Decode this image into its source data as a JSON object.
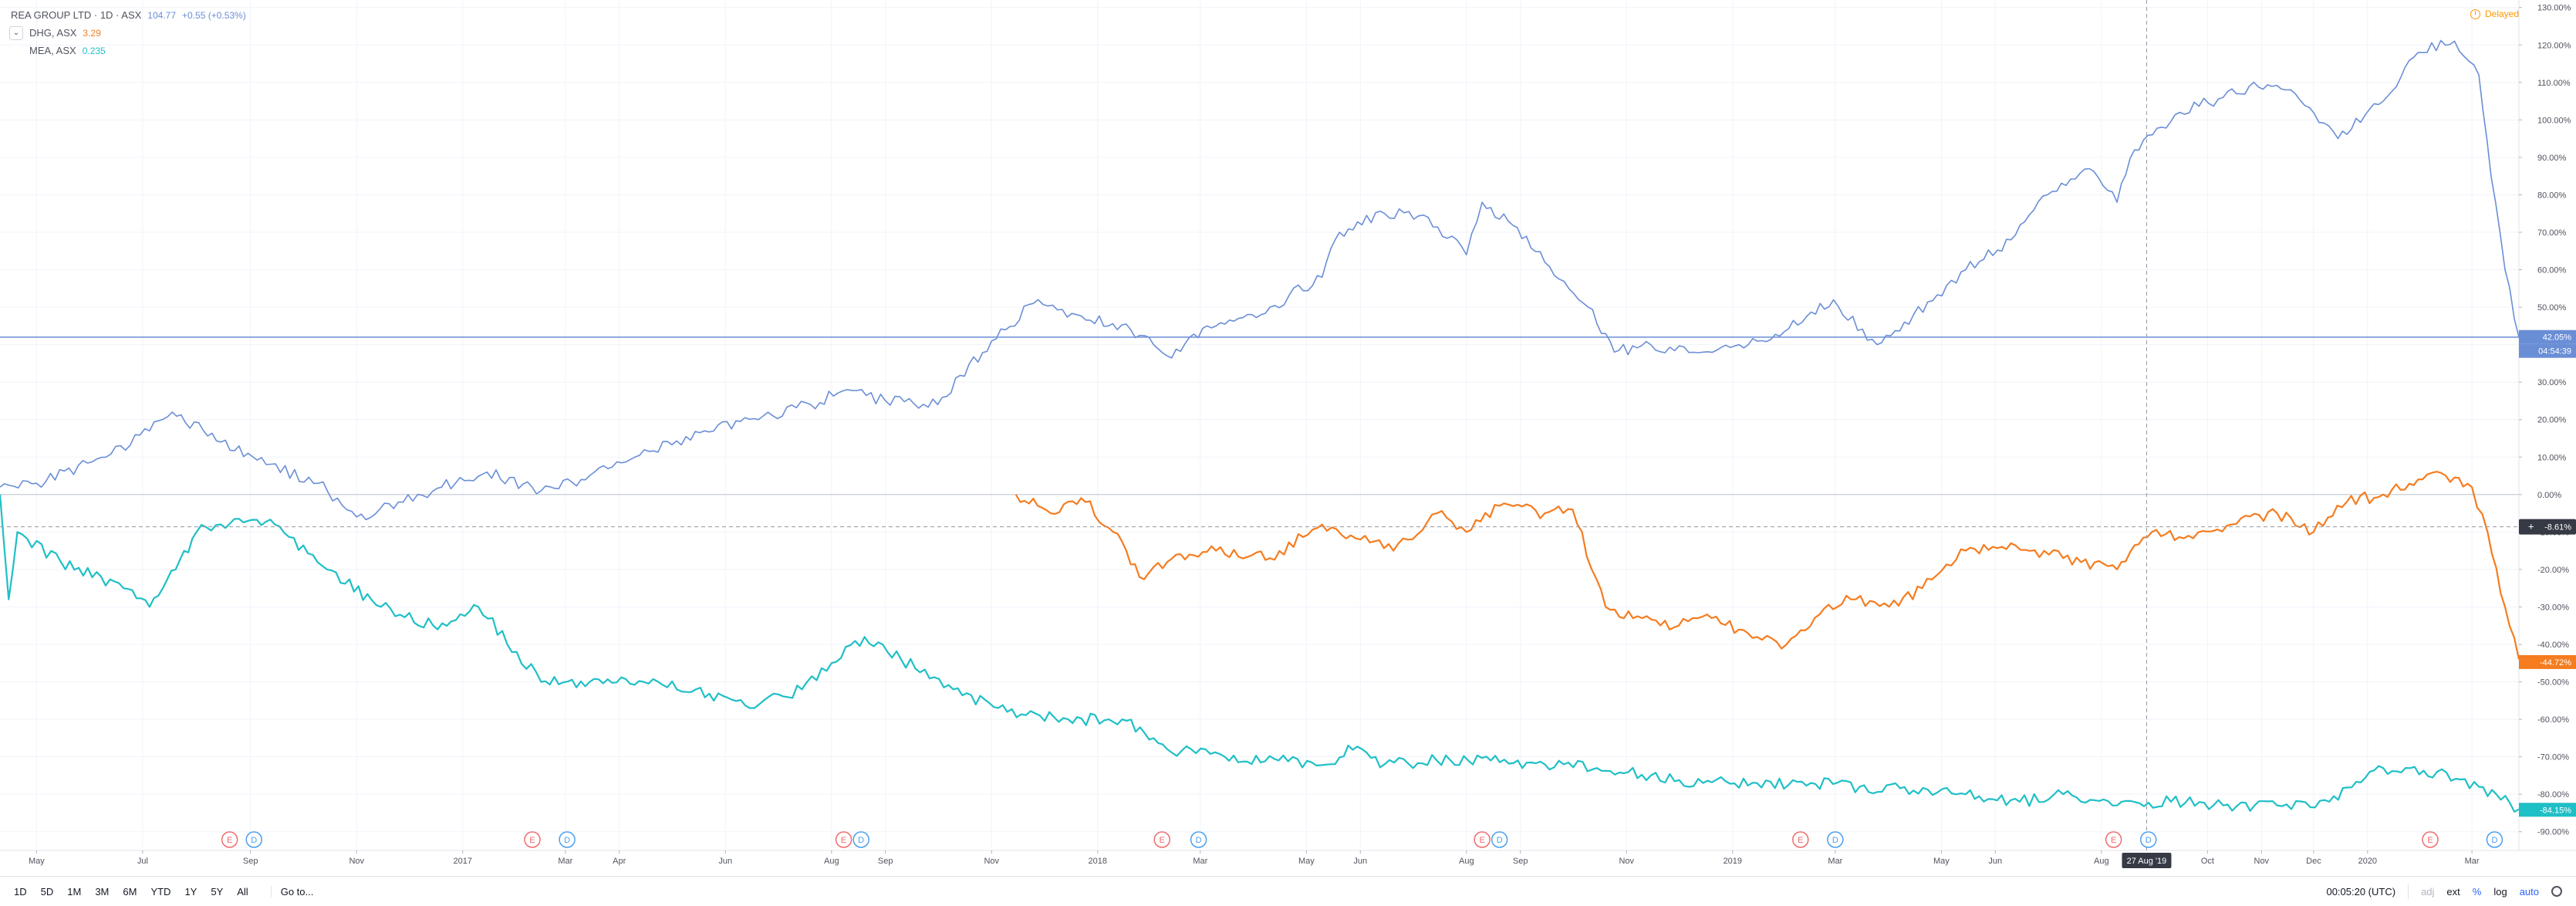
{
  "legend": {
    "main": {
      "name": "REA GROUP LTD · 1D · ASX",
      "value": "104.77",
      "change": "+0.55 (+0.53%)"
    },
    "items": [
      {
        "name": "DHG, ASX",
        "value": "3.29"
      },
      {
        "name": "MEA, ASX",
        "value": "0.235"
      }
    ]
  },
  "status": {
    "delayed": "Delayed"
  },
  "toolbar": {
    "ranges": [
      "1D",
      "5D",
      "1M",
      "3M",
      "6M",
      "YTD",
      "1Y",
      "5Y",
      "All"
    ],
    "goto": "Go to...",
    "time": "00:05:20 (UTC)",
    "adj": "adj",
    "ext": "ext",
    "percent": "%",
    "log": "log",
    "auto": "auto"
  },
  "colors": {
    "rea": "#6a8ed6",
    "dhg": "#f57c1f",
    "mea": "#1fbfc6",
    "grid": "#f0f3fa",
    "crosshair": "#9598a1"
  },
  "chart_data": {
    "type": "line",
    "y_axis": {
      "unit": "%",
      "min": -95,
      "max": 132,
      "ticks": [
        130,
        120,
        110,
        100,
        90,
        80,
        70,
        60,
        50,
        40,
        30,
        20,
        10,
        0,
        -10,
        -20,
        -30,
        -40,
        -50,
        -60,
        -70,
        -80,
        -90
      ],
      "tick_labels": [
        "130.00%",
        "120.00%",
        "110.00%",
        "100.00%",
        "90.00%",
        "80.00%",
        "70.00%",
        "60.00%",
        "50.00%",
        "40.00%",
        "30.00%",
        "20.00%",
        "10.00%",
        "0.00%",
        "-10.00%",
        "-20.00%",
        "-30.00%",
        "-40.00%",
        "-50.00%",
        "-60.00%",
        "-70.00%",
        "-80.00%",
        "-90.00%"
      ]
    },
    "x_axis": {
      "start": "2016-04-10",
      "end": "2020-03-28",
      "ticks": [
        {
          "date": "2016-05-01",
          "label": "May"
        },
        {
          "date": "2016-07-01",
          "label": "Jul"
        },
        {
          "date": "2016-09-01",
          "label": "Sep"
        },
        {
          "date": "2016-11-01",
          "label": "Nov"
        },
        {
          "date": "2017-01-01",
          "label": "2017"
        },
        {
          "date": "2017-03-01",
          "label": "Mar"
        },
        {
          "date": "2017-04-01",
          "label": "Apr"
        },
        {
          "date": "2017-06-01",
          "label": "Jun"
        },
        {
          "date": "2017-08-01",
          "label": "Aug"
        },
        {
          "date": "2017-09-01",
          "label": "Sep"
        },
        {
          "date": "2017-11-01",
          "label": "Nov"
        },
        {
          "date": "2018-01-01",
          "label": "2018"
        },
        {
          "date": "2018-03-01",
          "label": "Mar"
        },
        {
          "date": "2018-05-01",
          "label": "May"
        },
        {
          "date": "2018-06-01",
          "label": "Jun"
        },
        {
          "date": "2018-08-01",
          "label": "Aug"
        },
        {
          "date": "2018-09-01",
          "label": "Sep"
        },
        {
          "date": "2018-11-01",
          "label": "Nov"
        },
        {
          "date": "2019-01-01",
          "label": "2019"
        },
        {
          "date": "2019-03-01",
          "label": "Mar"
        },
        {
          "date": "2019-05-01",
          "label": "May"
        },
        {
          "date": "2019-06-01",
          "label": "Jun"
        },
        {
          "date": "2019-08-01",
          "label": "Aug"
        },
        {
          "date": "2019-10-01",
          "label": "Oct"
        },
        {
          "date": "2019-11-01",
          "label": "Nov"
        },
        {
          "date": "2019-12-01",
          "label": "Dec"
        },
        {
          "date": "2020-01-01",
          "label": "2020"
        },
        {
          "date": "2020-03-01",
          "label": "Mar"
        }
      ]
    },
    "crosshair": {
      "date": "2019-08-27",
      "date_label": "27 Aug '19",
      "value": -8.61,
      "value_label": "-8.61%"
    },
    "last_value_labels": [
      {
        "series": "REA",
        "value": 42.05,
        "label": "42.05%",
        "countdown": "04:54:39"
      },
      {
        "series": "DHG",
        "value": -44.72,
        "label": "-44.72%"
      },
      {
        "series": "MEA",
        "value": -84.15,
        "label": "-84.15%"
      }
    ],
    "events": [
      {
        "date": "2016-08-20",
        "type": "E"
      },
      {
        "date": "2016-09-03",
        "type": "D"
      },
      {
        "date": "2017-02-10",
        "type": "E"
      },
      {
        "date": "2017-03-02",
        "type": "D"
      },
      {
        "date": "2017-08-08",
        "type": "E"
      },
      {
        "date": "2017-08-18",
        "type": "D"
      },
      {
        "date": "2018-02-07",
        "type": "E"
      },
      {
        "date": "2018-02-28",
        "type": "D"
      },
      {
        "date": "2018-08-10",
        "type": "E"
      },
      {
        "date": "2018-08-20",
        "type": "D"
      },
      {
        "date": "2019-02-09",
        "type": "E"
      },
      {
        "date": "2019-03-01",
        "type": "D"
      },
      {
        "date": "2019-08-08",
        "type": "E"
      },
      {
        "date": "2019-08-28",
        "type": "D"
      },
      {
        "date": "2020-02-06",
        "type": "E"
      },
      {
        "date": "2020-03-14",
        "type": "D"
      }
    ],
    "series": [
      {
        "name": "REA, ASX",
        "x": [
          "2016-04-10",
          "2016-05-01",
          "2016-06-10",
          "2016-07-05",
          "2016-07-18",
          "2016-08-15",
          "2016-09-10",
          "2016-10-10",
          "2016-11-01",
          "2016-11-25",
          "2016-12-20",
          "2017-01-15",
          "2017-02-15",
          "2017-03-10",
          "2017-04-10",
          "2017-05-20",
          "2017-06-20",
          "2017-07-20",
          "2017-08-10",
          "2017-09-01",
          "2017-10-01",
          "2017-11-01",
          "2017-11-25",
          "2017-12-20",
          "2018-01-20",
          "2018-02-10",
          "2018-03-10",
          "2018-04-10",
          "2018-05-10",
          "2018-05-20",
          "2018-06-15",
          "2018-07-10",
          "2018-08-01",
          "2018-08-10",
          "2018-08-25",
          "2018-09-15",
          "2018-10-10",
          "2018-10-25",
          "2018-11-15",
          "2018-12-15",
          "2019-01-10",
          "2019-02-10",
          "2019-02-28",
          "2019-03-25",
          "2019-04-15",
          "2019-05-15",
          "2019-06-10",
          "2019-07-01",
          "2019-07-25",
          "2019-08-10",
          "2019-08-20",
          "2019-09-15",
          "2019-10-10",
          "2019-10-25",
          "2019-11-15",
          "2019-12-15",
          "2020-01-10",
          "2020-01-30",
          "2020-02-20",
          "2020-03-05",
          "2020-03-12",
          "2020-03-20",
          "2020-03-28"
        ],
        "values": [
          2,
          3,
          10,
          17,
          22,
          14,
          8,
          3,
          -6,
          -2,
          2,
          6,
          1,
          4,
          10,
          17,
          20,
          24,
          28,
          25,
          24,
          41,
          51,
          48,
          44,
          37,
          45,
          50,
          58,
          70,
          75,
          74,
          64,
          78,
          73,
          62,
          50,
          38,
          40,
          38,
          40,
          46,
          52,
          40,
          48,
          60,
          68,
          80,
          87,
          78,
          92,
          102,
          106,
          109,
          108,
          95,
          105,
          118,
          121,
          112,
          85,
          60,
          42
        ]
      },
      {
        "name": "DHG, ASX",
        "x": [
          "2017-11-15",
          "2017-12-05",
          "2017-12-25",
          "2018-01-10",
          "2018-01-25",
          "2018-02-10",
          "2018-03-10",
          "2018-04-10",
          "2018-05-10",
          "2018-06-01",
          "2018-06-20",
          "2018-07-15",
          "2018-08-01",
          "2018-08-20",
          "2018-09-15",
          "2018-10-01",
          "2018-10-20",
          "2018-11-10",
          "2018-12-01",
          "2018-12-20",
          "2019-01-15",
          "2019-02-01",
          "2019-02-20",
          "2019-03-10",
          "2019-04-01",
          "2019-04-20",
          "2019-05-15",
          "2019-06-10",
          "2019-07-10",
          "2019-08-10",
          "2019-08-30",
          "2019-09-20",
          "2019-10-15",
          "2019-11-10",
          "2019-12-01",
          "2019-12-20",
          "2020-01-10",
          "2020-01-30",
          "2020-02-15",
          "2020-03-01",
          "2020-03-10",
          "2020-03-20",
          "2020-03-28"
        ],
        "values": [
          0,
          -5,
          -2,
          -10,
          -22,
          -18,
          -15,
          -17,
          -8,
          -12,
          -15,
          -5,
          -10,
          -3,
          -5,
          -4,
          -30,
          -33,
          -35,
          -33,
          -38,
          -40,
          -32,
          -28,
          -30,
          -25,
          -15,
          -13,
          -17,
          -20,
          -10,
          -11,
          -8,
          -5,
          -10,
          -2,
          0,
          4,
          5,
          2,
          -10,
          -30,
          -44
        ]
      },
      {
        "name": "MEA, ASX",
        "x": [
          "2016-04-10",
          "2016-04-15",
          "2016-04-20",
          "2016-05-15",
          "2016-06-20",
          "2016-07-05",
          "2016-07-20",
          "2016-08-01",
          "2016-08-15",
          "2016-09-15",
          "2016-10-15",
          "2016-11-15",
          "2016-12-15",
          "2017-01-10",
          "2017-02-01",
          "2017-02-15",
          "2017-03-15",
          "2017-04-15",
          "2017-05-15",
          "2017-06-15",
          "2017-07-15",
          "2017-08-01",
          "2017-08-20",
          "2017-09-10",
          "2017-10-10",
          "2017-11-10",
          "2017-12-15",
          "2018-01-15",
          "2018-02-10",
          "2018-03-15",
          "2018-04-15",
          "2018-05-15",
          "2018-05-25",
          "2018-06-15",
          "2018-07-15",
          "2018-08-15",
          "2018-09-15",
          "2018-10-15",
          "2018-11-15",
          "2018-12-15",
          "2019-01-15",
          "2019-02-15",
          "2019-03-15",
          "2019-04-15",
          "2019-05-15",
          "2019-06-15",
          "2019-07-10",
          "2019-08-10",
          "2019-09-10",
          "2019-10-10",
          "2019-11-10",
          "2019-12-10",
          "2020-01-10",
          "2020-02-10",
          "2020-03-05",
          "2020-03-15",
          "2020-03-28"
        ],
        "values": [
          0,
          -28,
          -10,
          -18,
          -25,
          -30,
          -20,
          -10,
          -8,
          -8,
          -20,
          -30,
          -35,
          -30,
          -42,
          -50,
          -50,
          -50,
          -52,
          -57,
          -52,
          -45,
          -38,
          -44,
          -52,
          -58,
          -60,
          -60,
          -68,
          -70,
          -71,
          -72,
          -67,
          -72,
          -71,
          -71,
          -72,
          -73,
          -75,
          -77,
          -77,
          -77,
          -78,
          -79,
          -80,
          -82,
          -80,
          -83,
          -82,
          -83,
          -83,
          -82,
          -73,
          -74,
          -78,
          -80,
          -84
        ]
      }
    ]
  }
}
